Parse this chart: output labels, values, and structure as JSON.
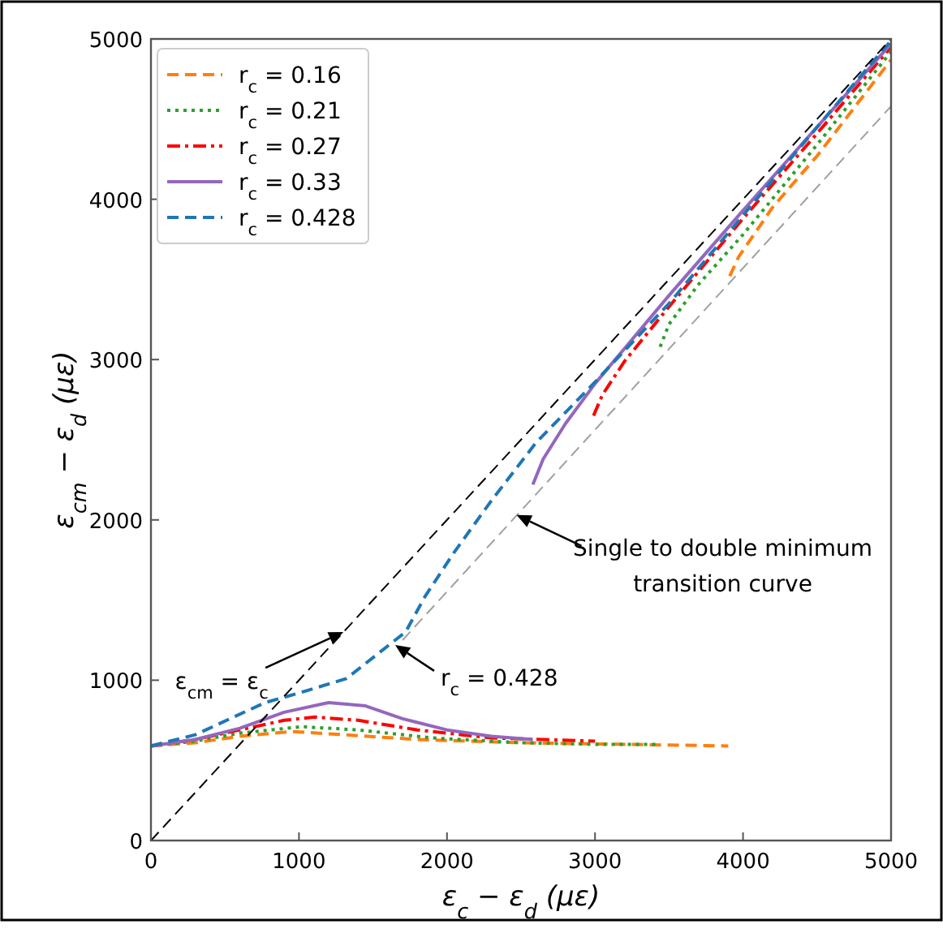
{
  "chart_data": {
    "type": "line",
    "xlabel": "ε$_{c}$ − ε$_{d}$ (με)",
    "ylabel": "ε$_{cm}$ − ε$_{d}$ (με)",
    "xlim": [
      0,
      5000
    ],
    "ylim": [
      0,
      5000
    ],
    "xticks": [
      0,
      1000,
      2000,
      3000,
      4000,
      5000
    ],
    "yticks": [
      0,
      1000,
      2000,
      3000,
      4000,
      5000
    ],
    "grid": false,
    "legend": "top left",
    "marker": "none",
    "series": [
      {
        "name": "r$_{c}$ = 0.16",
        "color": "#ff7f0e",
        "line_style": "dashed",
        "x": [
          0,
          300,
          600,
          950,
          1300,
          1800,
          2500,
          3200,
          3900,
          null,
          3910,
          3970,
          4200,
          4500,
          5000
        ],
        "values": [
          590,
          610,
          650,
          680,
          660,
          630,
          610,
          600,
          590,
          null,
          3520,
          3640,
          3950,
          4270,
          4870
        ]
      },
      {
        "name": "r$_{c}$ = 0.21",
        "color": "#2ca02c",
        "line_style": "dotted",
        "x": [
          0,
          300,
          600,
          1020,
          1400,
          1900,
          2500,
          3000,
          3410,
          null,
          3440,
          3500,
          3700,
          4000,
          4500,
          5000
        ],
        "values": [
          590,
          620,
          670,
          710,
          690,
          640,
          610,
          600,
          600,
          null,
          3080,
          3220,
          3470,
          3780,
          4340,
          4920
        ]
      },
      {
        "name": "r$_{c}$ = 0.27",
        "color": "#ff0000",
        "line_style": "dashdot",
        "x": [
          0,
          300,
          600,
          900,
          1110,
          1400,
          1800,
          2300,
          3000,
          null,
          2990,
          3050,
          3200,
          3500,
          4000,
          4500,
          5000
        ],
        "values": [
          590,
          630,
          690,
          750,
          770,
          750,
          690,
          640,
          620,
          null,
          2650,
          2780,
          2990,
          3330,
          3880,
          4410,
          4950
        ]
      },
      {
        "name": "r$_{c}$ = 0.33",
        "color": "#9467bd",
        "line_style": "solid",
        "x": [
          0,
          300,
          600,
          900,
          1200,
          1450,
          1700,
          2000,
          2300,
          2580,
          null,
          2580,
          2650,
          2800,
          3000,
          3500,
          4000,
          4500,
          5000
        ],
        "values": [
          590,
          630,
          700,
          800,
          860,
          840,
          760,
          690,
          650,
          630,
          null,
          2220,
          2380,
          2600,
          2850,
          3400,
          3930,
          4450,
          4970
        ]
      },
      {
        "name": "r$_{c}$ = 0.428",
        "color": "#1f77b4",
        "line_style": "dashed",
        "x": [
          0,
          300,
          770,
          1000,
          1320,
          1650,
          1720,
          1850,
          2050,
          2300,
          2600,
          3000,
          3500,
          4000,
          4500,
          5000
        ],
        "values": [
          590,
          660,
          860,
          920,
          1010,
          1250,
          1300,
          1520,
          1800,
          2120,
          2480,
          2860,
          3350,
          3900,
          4450,
          4990
        ]
      },
      {
        "color": "#000000",
        "line_style": "dashed",
        "x": [
          0,
          5000
        ],
        "values": [
          0,
          5000
        ]
      },
      {
        "color": "#a0a0a0",
        "line_style": "dashed",
        "x": [
          1700,
          5000
        ],
        "values": [
          1250,
          4580
        ]
      }
    ],
    "annotations": [
      {
        "text": "ε$_{cm}$ = ε$_{c}$",
        "x": 1300,
        "y": 1300
      },
      {
        "text": "r$_{c}$ = 0.428",
        "x": 1650,
        "y": 1220
      },
      {
        "text": "Single to double minimum\ntransition curve",
        "x": 2470,
        "y": 2030
      }
    ]
  }
}
